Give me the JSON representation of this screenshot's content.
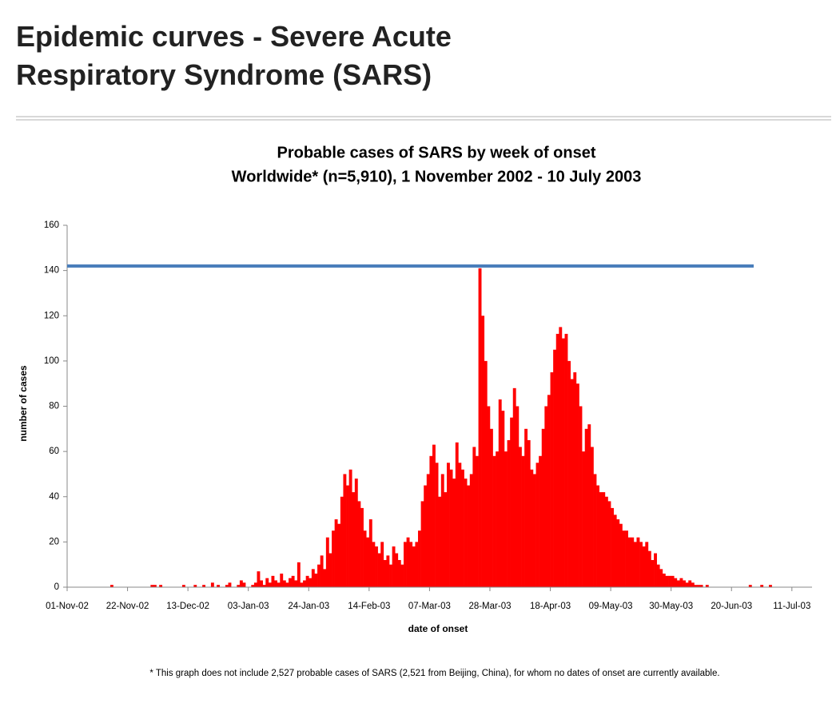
{
  "heading": "Epidemic curves - Severe Acute Respiratory Syndrome (SARS)",
  "chart_data": {
    "type": "bar",
    "title": "Probable cases of SARS by week of onset",
    "subtitle": "Worldwide* (n=5,910), 1 November 2002 - 10 July 2003",
    "y_label": "number of cases",
    "x_label": "date of onset",
    "footnote": "* This graph does not include 2,527 probable cases of SARS (2,521 from Beijing, China), for whom no dates of onset are currently available.",
    "color": "#ff0000",
    "reference_line": {
      "value": 142,
      "color": "#4a7ebb"
    },
    "ylim": [
      0,
      160
    ],
    "yticks": [
      0,
      20,
      40,
      60,
      80,
      100,
      120,
      140,
      160
    ],
    "categories": [
      "01-Nov-02",
      null,
      null,
      null,
      null,
      null,
      null,
      null,
      null,
      null,
      null,
      null,
      null,
      null,
      null,
      null,
      null,
      null,
      null,
      null,
      null,
      "22-Nov-02",
      null,
      null,
      null,
      null,
      null,
      null,
      null,
      null,
      null,
      null,
      null,
      null,
      null,
      null,
      null,
      null,
      null,
      null,
      null,
      null,
      "13-Dec-02",
      null,
      null,
      null,
      null,
      null,
      null,
      null,
      null,
      null,
      null,
      null,
      null,
      null,
      null,
      null,
      null,
      null,
      null,
      null,
      null,
      "03-Jan-03",
      null,
      null,
      null,
      null,
      null,
      null,
      null,
      null,
      null,
      null,
      null,
      null,
      null,
      null,
      null,
      null,
      null,
      null,
      null,
      null,
      "24-Jan-03",
      null,
      null,
      null,
      null,
      null,
      null,
      null,
      null,
      null,
      null,
      null,
      null,
      null,
      null,
      null,
      null,
      null,
      null,
      null,
      null,
      "14-Feb-03",
      null,
      null,
      null,
      null,
      null,
      null,
      null,
      null,
      null,
      null,
      null,
      null,
      null,
      null,
      null,
      null,
      null,
      null,
      null,
      null,
      "07-Mar-03",
      null,
      null,
      null,
      null,
      null,
      null,
      null,
      null,
      null,
      null,
      null,
      null,
      null,
      null,
      null,
      null,
      null,
      null,
      null,
      null,
      "28-Mar-03",
      null,
      null,
      null,
      null,
      null,
      null,
      null,
      null,
      null,
      null,
      null,
      null,
      null,
      null,
      null,
      null,
      null,
      null,
      null,
      null,
      "18-Apr-03",
      null,
      null,
      null,
      null,
      null,
      null,
      null,
      null,
      null,
      null,
      null,
      null,
      null,
      null,
      null,
      null,
      null,
      null,
      null,
      null,
      "09-May-03",
      null,
      null,
      null,
      null,
      null,
      null,
      null,
      null,
      null,
      null,
      null,
      null,
      null,
      null,
      null,
      null,
      null,
      null,
      null,
      null,
      "30-May-03",
      null,
      null,
      null,
      null,
      null,
      null,
      null,
      null,
      null,
      null,
      null,
      null,
      null,
      null,
      null,
      null,
      null,
      null,
      null,
      null,
      "20-Jun-03",
      null,
      null,
      null,
      null,
      null,
      null,
      null,
      null,
      null,
      null,
      null,
      null,
      null,
      null,
      null,
      null,
      null,
      null,
      null,
      null,
      "11-Jul-03",
      null,
      null,
      null,
      null,
      null,
      null
    ],
    "values": [
      0,
      0,
      0,
      0,
      0,
      0,
      0,
      0,
      0,
      0,
      0,
      0,
      0,
      0,
      0,
      1,
      0,
      0,
      0,
      0,
      0,
      0,
      0,
      0,
      0,
      0,
      0,
      0,
      0,
      1,
      1,
      0,
      1,
      0,
      0,
      0,
      0,
      0,
      0,
      0,
      1,
      0,
      0,
      0,
      1,
      0,
      0,
      1,
      0,
      0,
      2,
      0,
      1,
      0,
      0,
      1,
      2,
      0,
      0,
      1,
      3,
      2,
      0,
      0,
      1,
      2,
      7,
      3,
      1,
      4,
      2,
      5,
      3,
      2,
      6,
      3,
      2,
      4,
      5,
      3,
      11,
      2,
      3,
      5,
      4,
      8,
      6,
      10,
      14,
      8,
      22,
      15,
      25,
      30,
      28,
      40,
      50,
      45,
      52,
      42,
      48,
      38,
      35,
      25,
      22,
      30,
      20,
      18,
      15,
      20,
      12,
      14,
      10,
      18,
      15,
      12,
      10,
      20,
      22,
      20,
      18,
      20,
      25,
      38,
      45,
      50,
      58,
      63,
      55,
      40,
      50,
      42,
      55,
      52,
      48,
      64,
      55,
      52,
      48,
      45,
      50,
      62,
      58,
      141,
      120,
      100,
      80,
      70,
      58,
      60,
      83,
      78,
      60,
      65,
      75,
      88,
      80,
      62,
      58,
      70,
      65,
      52,
      50,
      55,
      58,
      70,
      80,
      85,
      95,
      105,
      112,
      115,
      110,
      112,
      100,
      92,
      95,
      90,
      80,
      60,
      70,
      72,
      62,
      50,
      45,
      42,
      42,
      40,
      38,
      35,
      32,
      30,
      28,
      25,
      25,
      22,
      22,
      20,
      22,
      20,
      18,
      20,
      16,
      12,
      15,
      10,
      8,
      6,
      5,
      5,
      5,
      4,
      3,
      4,
      3,
      2,
      3,
      2,
      1,
      1,
      1,
      0,
      1,
      0,
      0,
      0,
      0,
      0,
      0,
      0,
      0,
      0,
      0,
      0,
      0,
      0,
      0,
      1,
      0,
      0,
      0,
      1,
      0,
      0,
      1,
      0,
      0,
      0,
      0,
      0,
      0,
      0,
      0,
      0,
      0,
      0,
      0,
      0,
      0
    ]
  }
}
